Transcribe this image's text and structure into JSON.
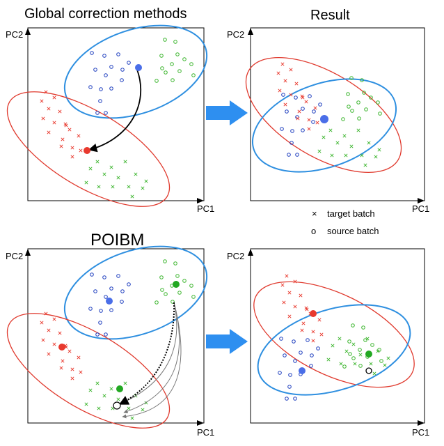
{
  "titles": {
    "top_left": "Global correction methods",
    "top_right": "Result",
    "bottom_left": "POIBM"
  },
  "axes": {
    "y_label": "PC2",
    "x_label": "PC1"
  },
  "legend": {
    "target": {
      "symbol": "×",
      "label": "target batch"
    },
    "source": {
      "symbol": "o",
      "label": "source batch"
    }
  },
  "colors": {
    "red": "#e8392e",
    "blue": "#1f3fbf",
    "green": "#3cb52e",
    "ellipse_blue": "#2e8fe0",
    "ellipse_red": "#e03a2e",
    "arrow": "#2e8ff0",
    "centroid_blue": "#4a6ee8"
  }
}
